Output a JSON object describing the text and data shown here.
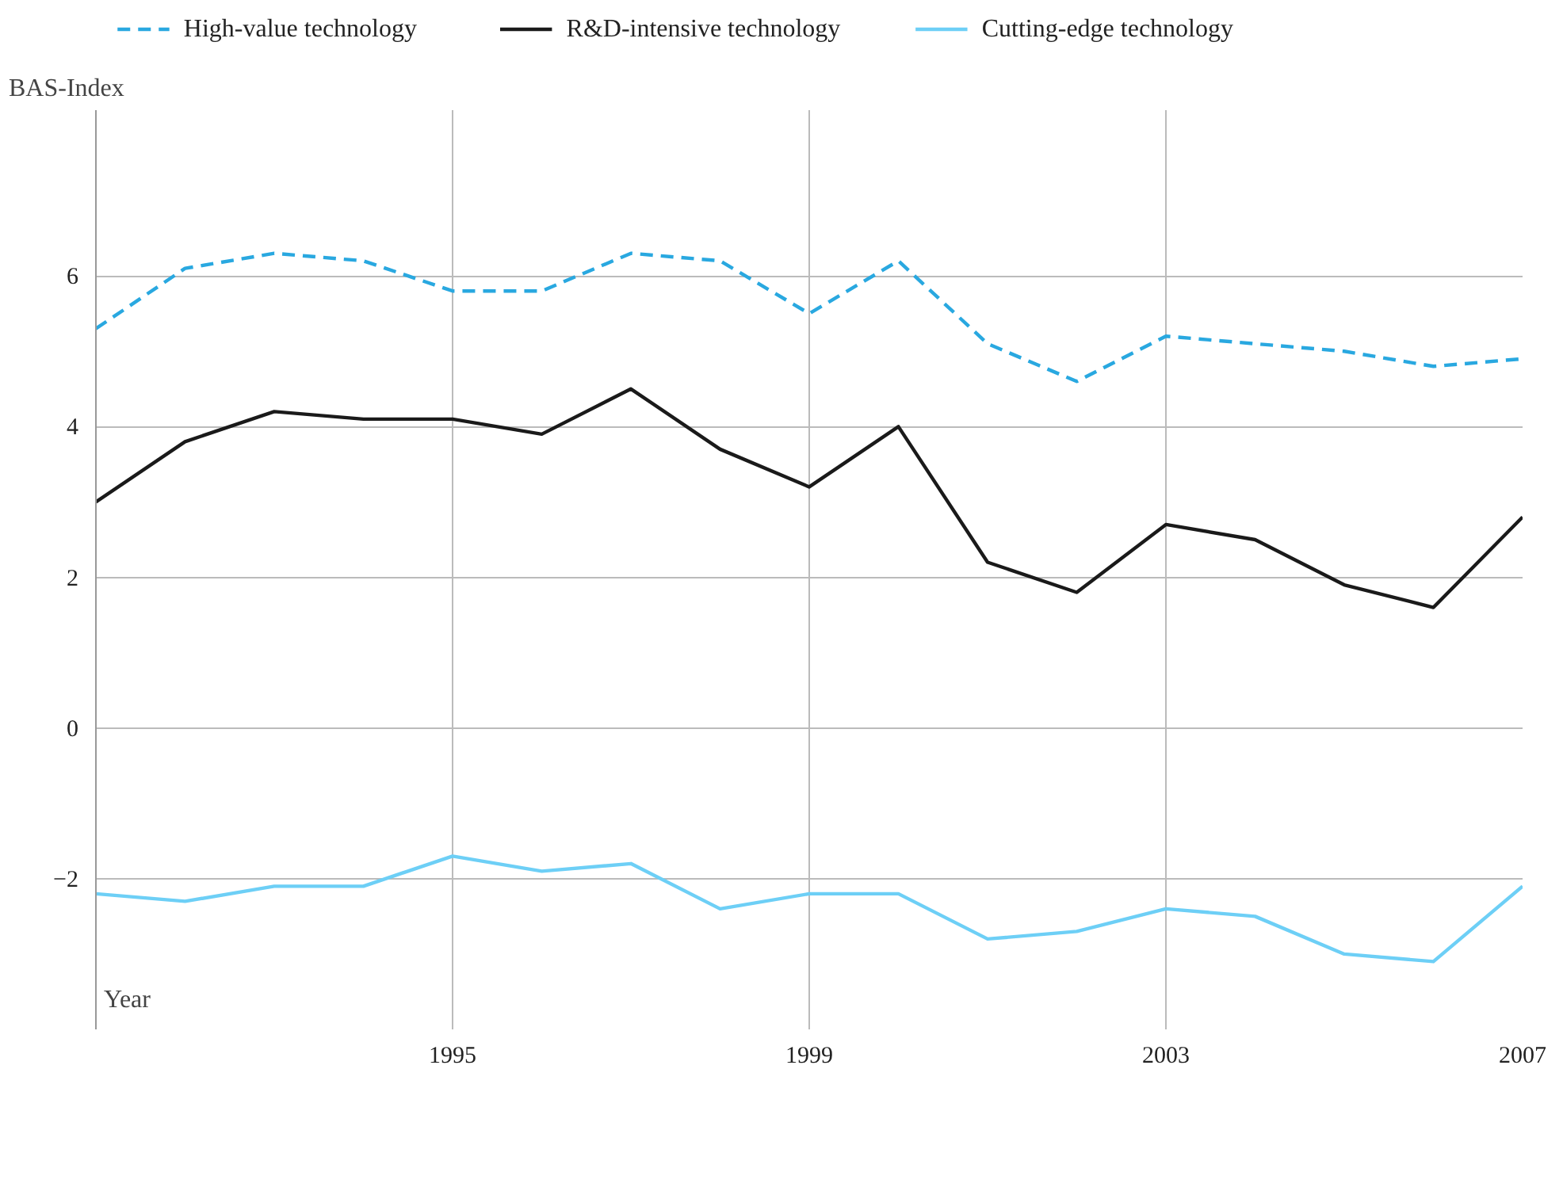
{
  "chart_data": {
    "type": "line",
    "xlabel": "Year",
    "ylabel": "BAS-Index",
    "x": [
      1991,
      1992,
      1993,
      1994,
      1995,
      1996,
      1997,
      1998,
      1999,
      2000,
      2001,
      2002,
      2003,
      2004,
      2005,
      2006,
      2007
    ],
    "series": [
      {
        "name": "High-value technology",
        "color": "#29a8e0",
        "line_style": "dashed",
        "values": [
          5.3,
          6.1,
          6.3,
          6.2,
          5.8,
          5.8,
          6.3,
          6.2,
          5.5,
          6.2,
          5.1,
          4.6,
          5.2,
          5.1,
          5.0,
          4.8,
          4.9
        ]
      },
      {
        "name": "R&D-intensive technology",
        "color": "#1a1a1a",
        "line_style": "solid",
        "values": [
          3.0,
          3.8,
          4.2,
          4.1,
          4.1,
          3.9,
          4.5,
          3.7,
          3.2,
          4.0,
          2.2,
          1.8,
          2.7,
          2.5,
          1.9,
          1.6,
          2.8
        ]
      },
      {
        "name": "Cutting-edge technology",
        "color": "#6dcff6",
        "line_style": "solid",
        "values": [
          -2.2,
          -2.3,
          -2.1,
          -2.1,
          -1.7,
          -1.9,
          -1.8,
          -2.4,
          -2.2,
          -2.2,
          -2.8,
          -2.7,
          -2.4,
          -2.5,
          -3.0,
          -3.1,
          -2.1
        ]
      }
    ],
    "xlim": [
      1991,
      2007
    ],
    "xticks": [
      1995,
      1999,
      2003,
      2007
    ],
    "ylim": [
      -4,
      8.2
    ],
    "yticks": [
      -2,
      0,
      2,
      4,
      6
    ],
    "grid": true,
    "legend": "top",
    "marker": "none"
  }
}
